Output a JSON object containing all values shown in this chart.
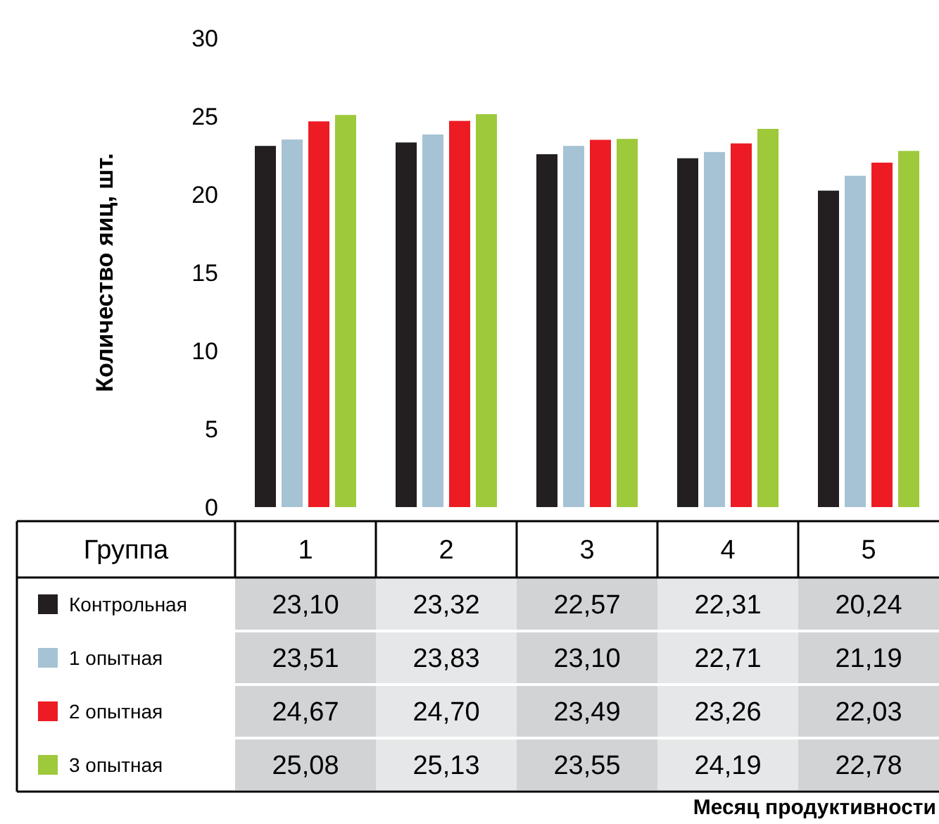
{
  "chart_data": {
    "type": "bar",
    "annotations": [
      "Месяц продуктивности"
    ],
    "ylabel": "Количество яиц, шт.",
    "legend_title": "Группа",
    "categories": [
      "1",
      "2",
      "3",
      "4",
      "5"
    ],
    "series": [
      {
        "name": "Контрольная",
        "color": "#231f20",
        "values": [
          23.1,
          23.32,
          22.57,
          22.31,
          20.24
        ],
        "value_labels": [
          "23,10",
          "23,32",
          "22,57",
          "22,31",
          "20,24"
        ]
      },
      {
        "name": "1 опытная",
        "color": "#a5c3d4",
        "values": [
          23.51,
          23.83,
          23.1,
          22.71,
          21.19
        ],
        "value_labels": [
          "23,51",
          "23,83",
          "23,10",
          "22,71",
          "21,19"
        ]
      },
      {
        "name": "2 опытная",
        "color": "#ed1c24",
        "values": [
          24.67,
          24.7,
          23.49,
          23.26,
          22.03
        ],
        "value_labels": [
          "24,67",
          "24,70",
          "23,49",
          "23,26",
          "22,03"
        ]
      },
      {
        "name": "3 опытная",
        "color": "#9dc93b",
        "values": [
          25.08,
          25.13,
          23.55,
          24.19,
          22.78
        ],
        "value_labels": [
          "25,08",
          "25,13",
          "23,55",
          "24,19",
          "22,78"
        ]
      }
    ],
    "ylim": [
      0,
      30
    ],
    "yticks": [
      0,
      5,
      10,
      15,
      20,
      25,
      30
    ],
    "grid": false,
    "legend": "bottom left"
  }
}
